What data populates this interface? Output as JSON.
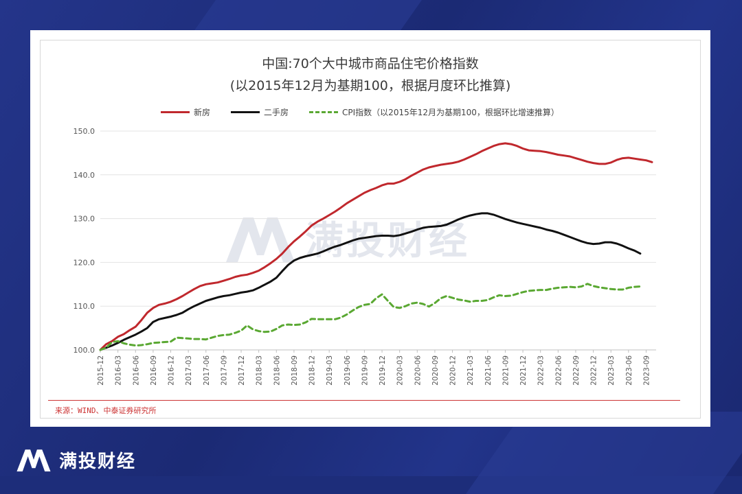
{
  "title_line1": "中国:70个大中城市商品住宅价格指数",
  "title_line2": "(以2015年12月为基期100，根据月度环比推算)",
  "source": "来源：WIND、中泰证券研究所",
  "watermark": "满投财经",
  "footer_brand": "满投财经",
  "chart_data": {
    "type": "line",
    "ylim": [
      100,
      150
    ],
    "yticks": [
      "100.0",
      "110.0",
      "120.0",
      "130.0",
      "140.0",
      "150.0"
    ],
    "grid": true,
    "legend_placement": "top",
    "x_tick_labels": [
      "2015-12",
      "2016-03",
      "2016-06",
      "2016-09",
      "2016-12",
      "2017-03",
      "2017-06",
      "2017-09",
      "2017-12",
      "2018-03",
      "2018-06",
      "2018-09",
      "2018-12",
      "2019-03",
      "2019-06",
      "2019-09",
      "2019-12",
      "2020-03",
      "2020-06",
      "2020-09",
      "2020-12",
      "2021-03",
      "2021-06",
      "2021-09",
      "2021-12",
      "2022-03",
      "2022-06",
      "2022-09",
      "2022-12",
      "2023-03",
      "2023-06",
      "2023-09"
    ],
    "series": [
      {
        "name": "新房",
        "color": "#c0282d",
        "style": "solid",
        "values": [
          100.0,
          101.3,
          102.0,
          103.0,
          103.6,
          104.5,
          105.3,
          106.8,
          108.5,
          109.6,
          110.3,
          110.6,
          111.0,
          111.6,
          112.3,
          113.1,
          113.9,
          114.6,
          115.0,
          115.2,
          115.4,
          115.8,
          116.2,
          116.7,
          117.0,
          117.2,
          117.6,
          118.1,
          118.9,
          119.8,
          120.8,
          122.0,
          123.5,
          124.8,
          125.9,
          127.1,
          128.4,
          129.3,
          130.0,
          130.8,
          131.6,
          132.5,
          133.5,
          134.3,
          135.1,
          135.9,
          136.5,
          137.0,
          137.6,
          138.0,
          138.0,
          138.4,
          139.0,
          139.8,
          140.5,
          141.2,
          141.7,
          142.0,
          142.3,
          142.5,
          142.7,
          143.0,
          143.5,
          144.1,
          144.7,
          145.4,
          146.0,
          146.6,
          147.0,
          147.2,
          147.0,
          146.6,
          146.0,
          145.6,
          145.5,
          145.4,
          145.2,
          144.9,
          144.6,
          144.4,
          144.2,
          143.8,
          143.4,
          143.0,
          142.7,
          142.5,
          142.5,
          142.8,
          143.4,
          143.8,
          143.9,
          143.7,
          143.5,
          143.3,
          142.9
        ]
      },
      {
        "name": "二手房",
        "color": "#111111",
        "style": "solid",
        "values": [
          100.0,
          100.5,
          101.0,
          101.6,
          102.3,
          102.9,
          103.5,
          104.2,
          105.0,
          106.4,
          107.0,
          107.3,
          107.6,
          108.0,
          108.5,
          109.3,
          110.0,
          110.6,
          111.2,
          111.6,
          112.0,
          112.3,
          112.5,
          112.8,
          113.1,
          113.3,
          113.6,
          114.2,
          114.9,
          115.6,
          116.5,
          118.0,
          119.4,
          120.4,
          121.0,
          121.4,
          121.7,
          122.0,
          122.5,
          123.1,
          123.6,
          124.0,
          124.5,
          125.0,
          125.4,
          125.6,
          125.8,
          126.0,
          126.1,
          126.1,
          126.0,
          126.2,
          126.6,
          127.0,
          127.5,
          127.9,
          128.1,
          128.2,
          128.3,
          128.6,
          129.2,
          129.8,
          130.3,
          130.7,
          131.0,
          131.2,
          131.2,
          130.9,
          130.4,
          129.9,
          129.5,
          129.1,
          128.8,
          128.5,
          128.2,
          127.9,
          127.5,
          127.2,
          126.8,
          126.3,
          125.8,
          125.3,
          124.8,
          124.4,
          124.2,
          124.3,
          124.6,
          124.6,
          124.3,
          123.8,
          123.2,
          122.7,
          122.0
        ]
      },
      {
        "name": "CPI指数（以2015年12月为基期100，根据环比增速推算）",
        "color": "#5aa832",
        "style": "dashed",
        "values": [
          100.0,
          100.5,
          101.8,
          102.0,
          101.5,
          101.2,
          101.0,
          101.1,
          101.3,
          101.6,
          101.7,
          101.8,
          101.9,
          102.8,
          102.7,
          102.6,
          102.5,
          102.5,
          102.4,
          102.8,
          103.2,
          103.4,
          103.5,
          103.9,
          104.4,
          105.6,
          104.7,
          104.3,
          104.1,
          104.2,
          104.8,
          105.6,
          105.8,
          105.7,
          105.8,
          106.3,
          107.1,
          107.0,
          107.0,
          107.0,
          107.0,
          107.4,
          108.1,
          109.0,
          109.8,
          110.3,
          110.5,
          111.8,
          112.7,
          111.2,
          109.8,
          109.6,
          110.0,
          110.6,
          110.8,
          110.5,
          109.9,
          110.7,
          111.8,
          112.3,
          111.9,
          111.5,
          111.3,
          111.0,
          111.2,
          111.2,
          111.4,
          112.0,
          112.5,
          112.3,
          112.4,
          112.8,
          113.2,
          113.5,
          113.6,
          113.7,
          113.7,
          114.0,
          114.2,
          114.3,
          114.4,
          114.3,
          114.5,
          115.1,
          114.6,
          114.3,
          114.1,
          113.9,
          113.8,
          113.8,
          114.2,
          114.4,
          114.5
        ]
      }
    ]
  }
}
